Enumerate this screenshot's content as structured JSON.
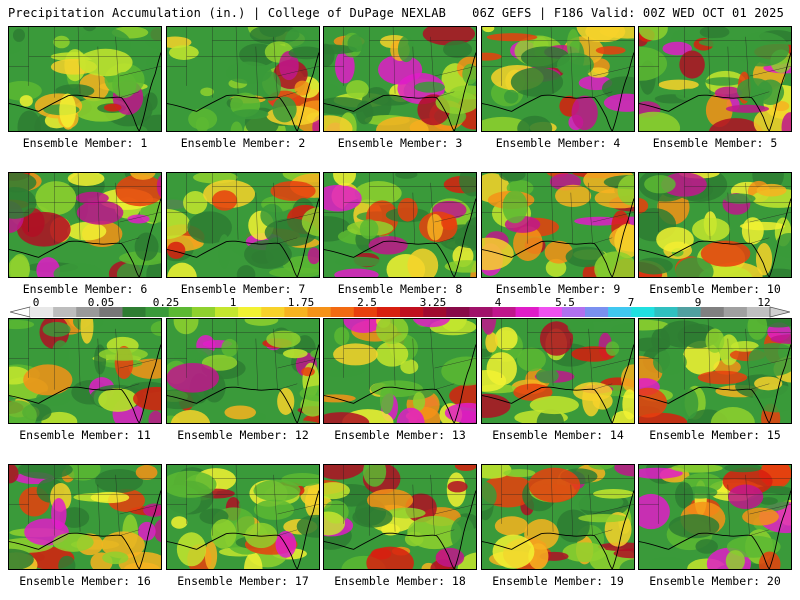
{
  "header": {
    "left": "Precipitation Accumulation (in.) | College of DuPage NEXLAB",
    "right": "06Z GEFS | F186 Valid: 00Z WED OCT 01 2025"
  },
  "panel_prefix": "Ensemble Member: ",
  "members": [
    1,
    2,
    3,
    4,
    5,
    6,
    7,
    8,
    9,
    10,
    11,
    12,
    13,
    14,
    15,
    16,
    17,
    18,
    19,
    20
  ],
  "colorbar": {
    "labels": [
      "0",
      "0.05",
      "0.25",
      "1",
      "1.75",
      "2.5",
      "3.25",
      "4",
      "5.5",
      "7",
      "9",
      "12"
    ],
    "colors": [
      "#e8e8e8",
      "#bdbdbd",
      "#9a9a9a",
      "#777777",
      "#2e7d32",
      "#3a9a3a",
      "#5cb833",
      "#8fd12e",
      "#c4e62e",
      "#f2f233",
      "#f7d22a",
      "#f7b320",
      "#f59218",
      "#f26a12",
      "#e8400e",
      "#d81f0f",
      "#c00f1f",
      "#a00a30",
      "#880a48",
      "#a0126a",
      "#c0168c",
      "#e01cc8",
      "#f050f0",
      "#b070f0",
      "#7a90f0",
      "#40c8f0",
      "#20e0e0",
      "#30c0c0",
      "#50a0a0",
      "#808080",
      "#a0a0a0",
      "#c0c0c0"
    ]
  },
  "colors": {
    "border": "#000000",
    "background": "#ffffff"
  }
}
